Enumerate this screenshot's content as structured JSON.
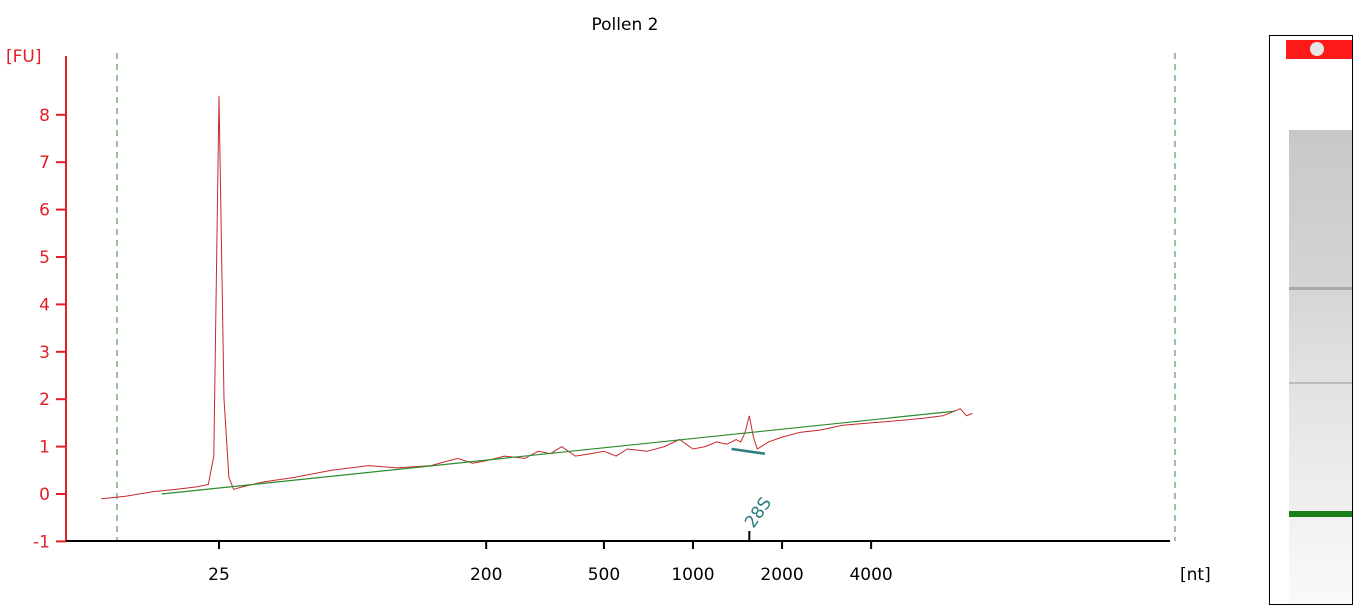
{
  "chart_data": {
    "type": "line",
    "title": "Pollen 2",
    "ylabel": "[FU]",
    "xlabel": "[nt]",
    "ylim": [
      -1,
      9
    ],
    "y_ticks": [
      -1,
      0,
      1,
      2,
      3,
      4,
      5,
      6,
      7,
      8
    ],
    "x_scale": "log",
    "x_ticks": [
      {
        "label": "25",
        "value": 25
      },
      {
        "label": "200",
        "value": 200
      },
      {
        "label": "500",
        "value": 500
      },
      {
        "label": "1000",
        "value": 1000
      },
      {
        "label": "2000",
        "value": 2000
      },
      {
        "label": "4000",
        "value": 4000
      }
    ],
    "annotations": [
      {
        "label": "28S",
        "x": 1550
      }
    ],
    "series": [
      {
        "color": "#c8292d",
        "x": [
          10,
          12,
          15,
          18,
          21,
          23,
          24,
          25,
          26,
          27,
          28,
          30,
          35,
          45,
          60,
          80,
          100,
          130,
          160,
          180,
          200,
          230,
          270,
          300,
          330,
          360,
          400,
          450,
          500,
          550,
          600,
          700,
          800,
          900,
          1000,
          1100,
          1200,
          1300,
          1400,
          1450,
          1500,
          1550,
          1600,
          1650,
          1700,
          1800,
          2000,
          2300,
          2700,
          3200,
          4000,
          5000,
          6000,
          7000,
          8000,
          8400,
          8800
        ],
        "y": [
          -0.1,
          -0.05,
          0.05,
          0.1,
          0.15,
          0.2,
          0.8,
          8.4,
          2.0,
          0.35,
          0.1,
          0.15,
          0.25,
          0.35,
          0.5,
          0.6,
          0.55,
          0.6,
          0.75,
          0.65,
          0.7,
          0.8,
          0.75,
          0.9,
          0.85,
          1.0,
          0.8,
          0.85,
          0.9,
          0.8,
          0.95,
          0.9,
          1.0,
          1.15,
          0.95,
          1.0,
          1.1,
          1.05,
          1.15,
          1.1,
          1.3,
          1.65,
          1.2,
          0.95,
          1.0,
          1.1,
          1.2,
          1.3,
          1.35,
          1.45,
          1.5,
          1.55,
          1.6,
          1.65,
          1.8,
          1.65,
          1.7
        ]
      },
      {
        "color": "#2e8b2e",
        "x": [
          16,
          7700
        ],
        "y": [
          0.0,
          1.75
        ]
      }
    ],
    "peak_marker": {
      "color": "#2f7c80",
      "x": [
        1350,
        1750
      ],
      "y": [
        0.95,
        0.85
      ]
    },
    "grid": false,
    "gel": {
      "band_color": "#1a7f1a",
      "top_color": "#ff1a1a"
    }
  }
}
